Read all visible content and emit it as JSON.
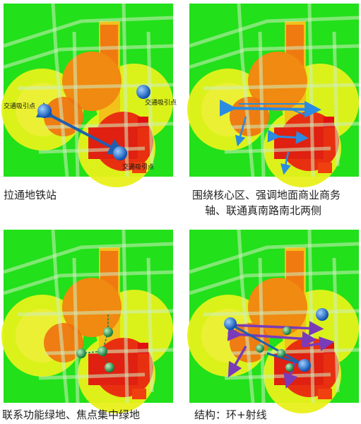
{
  "panels": [
    {
      "caption": [
        "拉通地铁站"
      ],
      "labels": [
        "交通吸引点",
        "交通吸引点",
        "交通吸引点"
      ]
    },
    {
      "caption": [
        "围绕核心区、强调地面商业商务",
        "轴、联通真南路南北两侧"
      ]
    },
    {
      "caption": [
        "联系功能绿地、焦点集中绿地"
      ]
    },
    {
      "caption": [
        "结构：环+射线"
      ]
    }
  ]
}
